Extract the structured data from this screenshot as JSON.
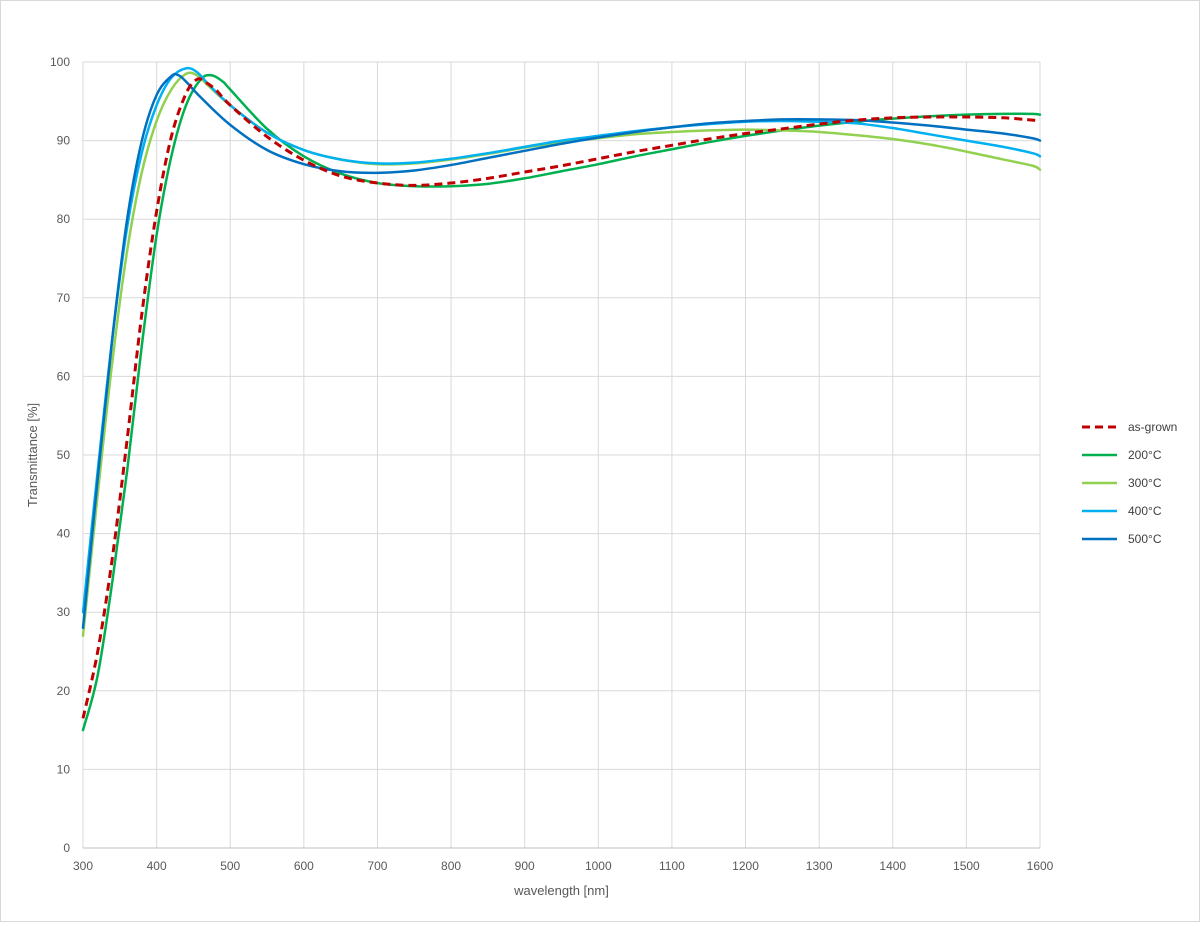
{
  "chart_data": {
    "type": "line",
    "xlabel": "wavelength [nm]",
    "ylabel": "Transmittance [%]",
    "xlim": [
      300,
      1600
    ],
    "ylim": [
      0,
      100
    ],
    "x_ticks": [
      300,
      400,
      500,
      600,
      700,
      800,
      900,
      1000,
      1100,
      1200,
      1300,
      1400,
      1500,
      1600
    ],
    "y_ticks": [
      0,
      10,
      20,
      30,
      40,
      50,
      60,
      70,
      80,
      90,
      100
    ],
    "grid": true,
    "legend_position": "right",
    "series": [
      {
        "name": "as-grown",
        "color": "#C00000",
        "dash": "dashed",
        "points": [
          [
            300,
            16.5
          ],
          [
            320,
            25
          ],
          [
            340,
            37
          ],
          [
            360,
            52
          ],
          [
            380,
            68
          ],
          [
            400,
            81
          ],
          [
            420,
            90.5
          ],
          [
            440,
            96
          ],
          [
            455,
            97.8
          ],
          [
            465,
            97.5
          ],
          [
            480,
            96.5
          ],
          [
            500,
            94.5
          ],
          [
            550,
            90.5
          ],
          [
            600,
            87.5
          ],
          [
            650,
            85.5
          ],
          [
            700,
            84.6
          ],
          [
            750,
            84.3
          ],
          [
            800,
            84.6
          ],
          [
            850,
            85.2
          ],
          [
            900,
            86
          ],
          [
            950,
            86.8
          ],
          [
            1000,
            87.7
          ],
          [
            1050,
            88.6
          ],
          [
            1100,
            89.4
          ],
          [
            1150,
            90.2
          ],
          [
            1200,
            90.9
          ],
          [
            1250,
            91.5
          ],
          [
            1300,
            92.1
          ],
          [
            1350,
            92.6
          ],
          [
            1400,
            92.9
          ],
          [
            1450,
            93
          ],
          [
            1500,
            93
          ],
          [
            1550,
            92.9
          ],
          [
            1590,
            92.6
          ],
          [
            1600,
            92.5
          ]
        ]
      },
      {
        "name": "200°C",
        "color": "#00B050",
        "dash": "solid",
        "points": [
          [
            300,
            15
          ],
          [
            320,
            22
          ],
          [
            340,
            34
          ],
          [
            360,
            48
          ],
          [
            380,
            64
          ],
          [
            400,
            78
          ],
          [
            420,
            88
          ],
          [
            440,
            94.5
          ],
          [
            460,
            97.8
          ],
          [
            475,
            98.3
          ],
          [
            490,
            97.5
          ],
          [
            500,
            96.5
          ],
          [
            550,
            91.5
          ],
          [
            600,
            88
          ],
          [
            650,
            85.8
          ],
          [
            700,
            84.6
          ],
          [
            750,
            84.2
          ],
          [
            800,
            84.2
          ],
          [
            850,
            84.5
          ],
          [
            900,
            85.2
          ],
          [
            950,
            86.1
          ],
          [
            1000,
            87
          ],
          [
            1050,
            88
          ],
          [
            1100,
            88.9
          ],
          [
            1150,
            89.8
          ],
          [
            1200,
            90.6
          ],
          [
            1250,
            91.3
          ],
          [
            1300,
            91.9
          ],
          [
            1350,
            92.4
          ],
          [
            1400,
            92.8
          ],
          [
            1450,
            93.1
          ],
          [
            1500,
            93.3
          ],
          [
            1550,
            93.4
          ],
          [
            1590,
            93.4
          ],
          [
            1600,
            93.3
          ]
        ]
      },
      {
        "name": "300°C",
        "color": "#92D050",
        "dash": "solid",
        "points": [
          [
            300,
            27
          ],
          [
            320,
            45
          ],
          [
            340,
            62
          ],
          [
            360,
            76
          ],
          [
            380,
            86
          ],
          [
            400,
            92.5
          ],
          [
            420,
            96.5
          ],
          [
            440,
            98.5
          ],
          [
            455,
            98.3
          ],
          [
            470,
            97
          ],
          [
            500,
            94.5
          ],
          [
            550,
            91
          ],
          [
            600,
            88.8
          ],
          [
            650,
            87.6
          ],
          [
            700,
            87
          ],
          [
            750,
            87.1
          ],
          [
            800,
            87.6
          ],
          [
            850,
            88.3
          ],
          [
            900,
            89.1
          ],
          [
            950,
            89.8
          ],
          [
            1000,
            90.3
          ],
          [
            1050,
            90.8
          ],
          [
            1100,
            91.1
          ],
          [
            1150,
            91.3
          ],
          [
            1200,
            91.4
          ],
          [
            1250,
            91.3
          ],
          [
            1300,
            91.1
          ],
          [
            1350,
            90.7
          ],
          [
            1400,
            90.2
          ],
          [
            1450,
            89.5
          ],
          [
            1500,
            88.6
          ],
          [
            1550,
            87.6
          ],
          [
            1590,
            86.8
          ],
          [
            1600,
            86.3
          ]
        ]
      },
      {
        "name": "400°C",
        "color": "#00B0F0",
        "dash": "solid",
        "points": [
          [
            300,
            30
          ],
          [
            320,
            48
          ],
          [
            340,
            65
          ],
          [
            360,
            79
          ],
          [
            380,
            88.5
          ],
          [
            400,
            94.5
          ],
          [
            420,
            98
          ],
          [
            440,
            99.2
          ],
          [
            455,
            98.7
          ],
          [
            470,
            97.2
          ],
          [
            500,
            94.5
          ],
          [
            550,
            91
          ],
          [
            600,
            88.8
          ],
          [
            650,
            87.6
          ],
          [
            700,
            87.1
          ],
          [
            750,
            87.2
          ],
          [
            800,
            87.7
          ],
          [
            850,
            88.4
          ],
          [
            900,
            89.2
          ],
          [
            950,
            90
          ],
          [
            1000,
            90.6
          ],
          [
            1050,
            91.2
          ],
          [
            1100,
            91.7
          ],
          [
            1150,
            92.1
          ],
          [
            1200,
            92.4
          ],
          [
            1250,
            92.5
          ],
          [
            1300,
            92.4
          ],
          [
            1350,
            92.2
          ],
          [
            1400,
            91.6
          ],
          [
            1450,
            90.8
          ],
          [
            1500,
            90
          ],
          [
            1550,
            89.2
          ],
          [
            1590,
            88.4
          ],
          [
            1600,
            88
          ]
        ]
      },
      {
        "name": "500°C",
        "color": "#0070C0",
        "dash": "solid",
        "points": [
          [
            300,
            28
          ],
          [
            320,
            47
          ],
          [
            340,
            65
          ],
          [
            360,
            80
          ],
          [
            380,
            90
          ],
          [
            400,
            95.8
          ],
          [
            420,
            98.2
          ],
          [
            430,
            98.3
          ],
          [
            440,
            97.5
          ],
          [
            460,
            95.5
          ],
          [
            500,
            92
          ],
          [
            550,
            88.8
          ],
          [
            600,
            87
          ],
          [
            650,
            86.1
          ],
          [
            700,
            85.9
          ],
          [
            750,
            86.2
          ],
          [
            800,
            86.9
          ],
          [
            850,
            87.8
          ],
          [
            900,
            88.7
          ],
          [
            950,
            89.6
          ],
          [
            1000,
            90.4
          ],
          [
            1050,
            91.1
          ],
          [
            1100,
            91.7
          ],
          [
            1150,
            92.2
          ],
          [
            1200,
            92.5
          ],
          [
            1250,
            92.7
          ],
          [
            1300,
            92.7
          ],
          [
            1350,
            92.6
          ],
          [
            1400,
            92.3
          ],
          [
            1450,
            91.9
          ],
          [
            1500,
            91.4
          ],
          [
            1550,
            90.9
          ],
          [
            1590,
            90.3
          ],
          [
            1600,
            90
          ]
        ]
      }
    ]
  }
}
